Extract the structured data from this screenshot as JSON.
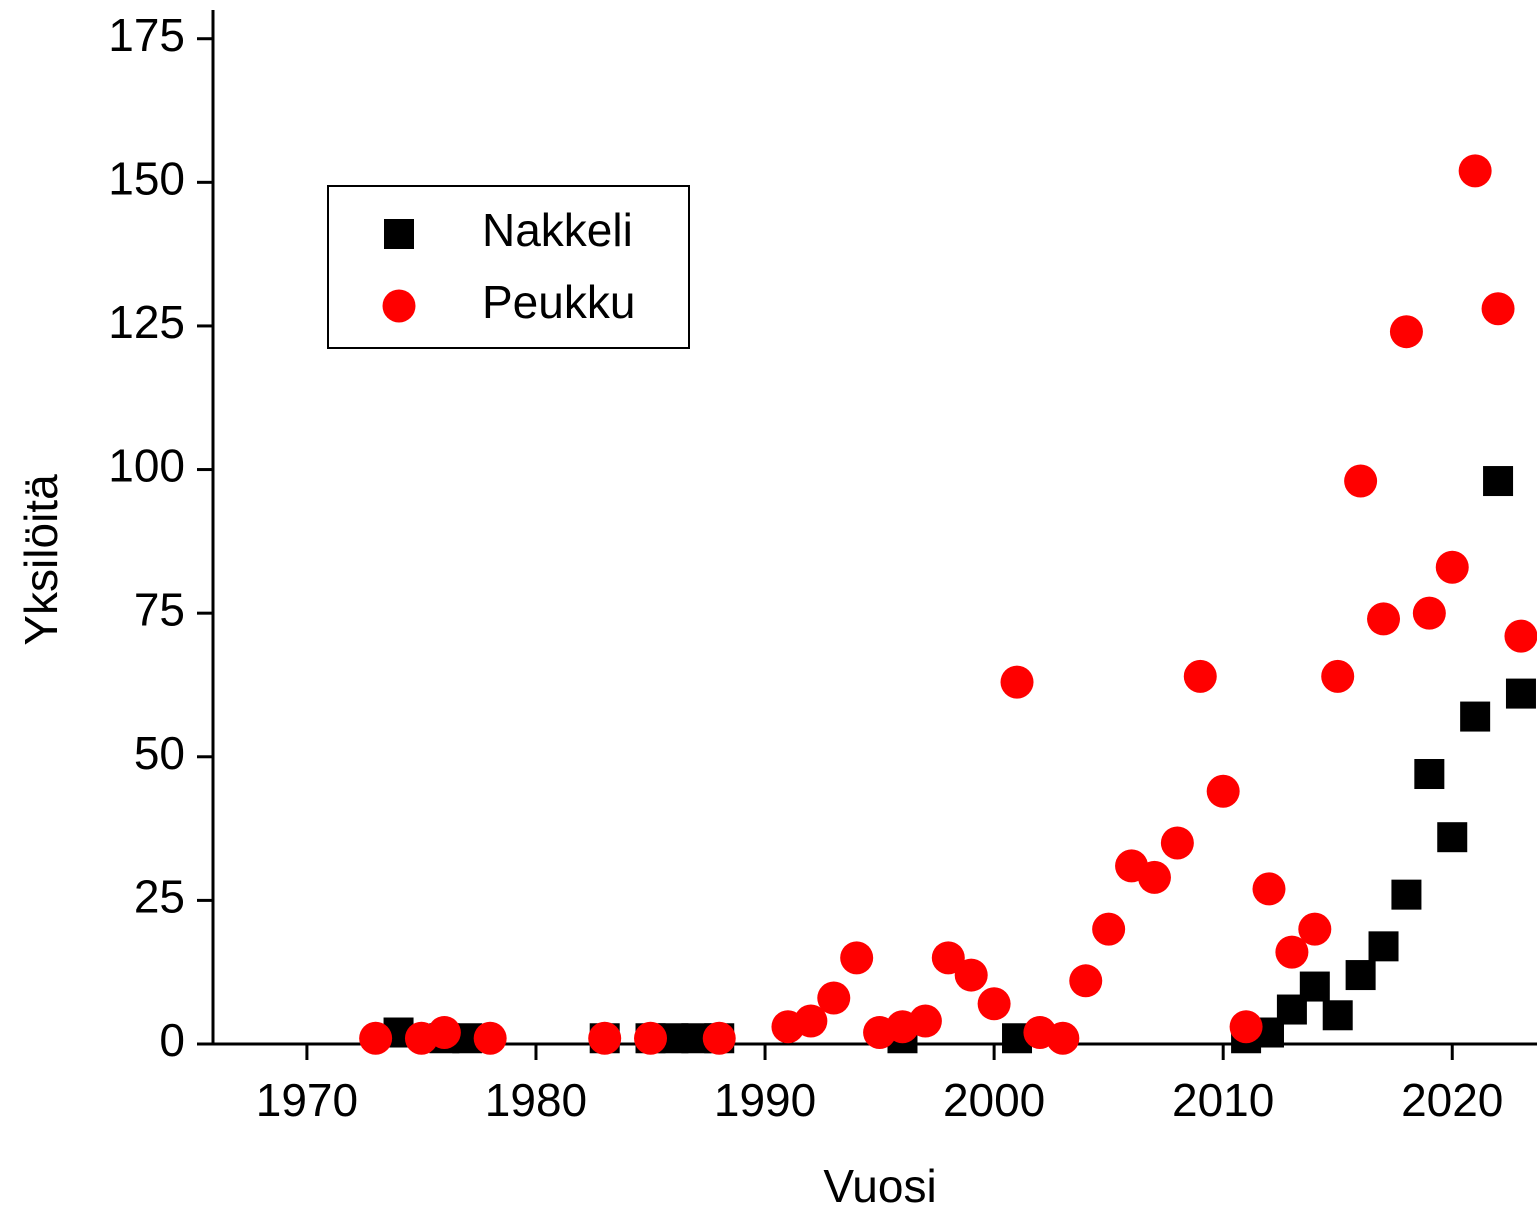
{
  "chart_data": {
    "type": "scatter",
    "x_label": "Vuosi",
    "y_label": "Yksilöitä",
    "xlim": [
      1965.9,
      2023.7
    ],
    "xticks": [
      1970,
      1980,
      1990,
      2000,
      2010,
      2020
    ],
    "ylim": [
      0,
      180
    ],
    "yticks": [
      0,
      25,
      50,
      75,
      100,
      125,
      150,
      175
    ],
    "legend": "upper left",
    "series": [
      {
        "name": "Nakkeli",
        "color": "#000000",
        "marker": "square",
        "x": [
          1974,
          1976,
          1977,
          1983,
          1985,
          1986,
          1987,
          1988,
          1996,
          2001,
          2011,
          2012,
          2013,
          2014,
          2015,
          2016,
          2017,
          2018,
          2019,
          2020,
          2021,
          2022,
          2023
        ],
        "values": [
          2,
          1,
          1,
          1,
          1,
          1,
          1,
          1,
          1,
          1,
          1,
          2,
          6,
          10,
          5,
          12,
          17,
          26,
          47,
          36,
          57,
          98,
          61
        ]
      },
      {
        "name": "Peukku",
        "color": "#ff0000",
        "marker": "circle",
        "x": [
          1973,
          1975,
          1976,
          1978,
          1983,
          1985,
          1988,
          1991,
          1992,
          1993,
          1994,
          1995,
          1996,
          1997,
          1998,
          1999,
          2000,
          2001,
          2002,
          2003,
          2004,
          2005,
          2006,
          2007,
          2008,
          2009,
          2010,
          2011,
          2012,
          2013,
          2014,
          2015,
          2016,
          2017,
          2018,
          2019,
          2020,
          2021,
          2022,
          2023
        ],
        "values": [
          1,
          1,
          2,
          1,
          1,
          1,
          1,
          3,
          4,
          8,
          15,
          2,
          3,
          4,
          15,
          12,
          7,
          63,
          2,
          1,
          11,
          20,
          31,
          29,
          35,
          64,
          44,
          3,
          27,
          16,
          20,
          64,
          98,
          74,
          124,
          75,
          83,
          152,
          128,
          71
        ]
      }
    ]
  }
}
